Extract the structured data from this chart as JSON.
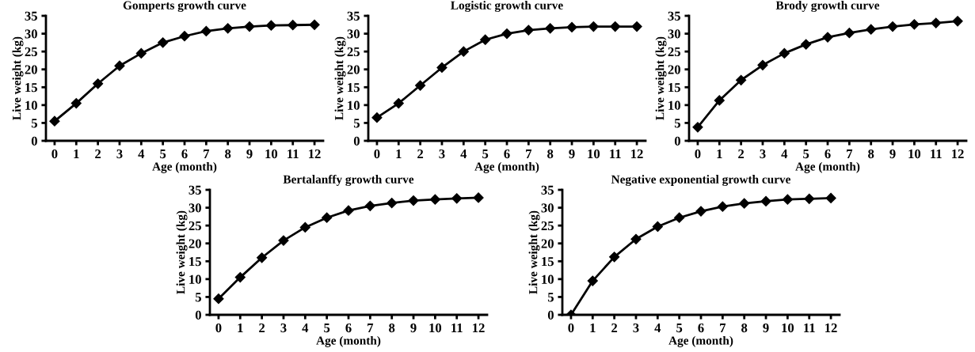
{
  "chart_data": [
    {
      "type": "line",
      "title": "Gomperts growth curve",
      "xlabel": "Age (month)",
      "ylabel": "Live weight (kg)",
      "x": [
        0,
        1,
        2,
        3,
        4,
        5,
        6,
        7,
        8,
        9,
        10,
        11,
        12
      ],
      "xlim": [
        -0.4,
        12.4
      ],
      "xticks": [
        0,
        1,
        2,
        3,
        4,
        5,
        6,
        7,
        8,
        9,
        10,
        11,
        12
      ],
      "ylim": [
        0,
        35
      ],
      "yticks": [
        0,
        5,
        10,
        15,
        20,
        25,
        30,
        35
      ],
      "marker": "diamond",
      "line_style": "solid",
      "grid": false,
      "legend": false,
      "series": [
        {
          "color": "#000000",
          "values": [
            5.5,
            10.5,
            16,
            21,
            24.5,
            27.5,
            29.3,
            30.7,
            31.5,
            32,
            32.3,
            32.4,
            32.5
          ]
        }
      ]
    },
    {
      "type": "line",
      "title": "Logistic growth curve",
      "xlabel": "Age (month)",
      "ylabel": "Live weight (kg)",
      "x": [
        0,
        1,
        2,
        3,
        4,
        5,
        6,
        7,
        8,
        9,
        10,
        11,
        12
      ],
      "xlim": [
        -0.4,
        12.4
      ],
      "xticks": [
        0,
        1,
        2,
        3,
        4,
        5,
        6,
        7,
        8,
        9,
        10,
        11,
        12
      ],
      "ylim": [
        0,
        35
      ],
      "yticks": [
        0,
        5,
        10,
        15,
        20,
        25,
        30,
        35
      ],
      "marker": "diamond",
      "line_style": "solid",
      "grid": false,
      "legend": false,
      "series": [
        {
          "color": "#000000",
          "values": [
            6.5,
            10.5,
            15.5,
            20.5,
            25,
            28.3,
            30,
            31,
            31.5,
            31.8,
            32,
            32,
            32
          ]
        }
      ]
    },
    {
      "type": "line",
      "title": "Brody growth curve",
      "xlabel": "Age (month)",
      "ylabel": "Live weight (kg)",
      "x": [
        0,
        1,
        2,
        3,
        4,
        5,
        6,
        7,
        8,
        9,
        10,
        11,
        12
      ],
      "xlim": [
        -0.4,
        12.4
      ],
      "xticks": [
        0,
        1,
        2,
        3,
        4,
        5,
        6,
        7,
        8,
        9,
        10,
        11,
        12
      ],
      "ylim": [
        0,
        35
      ],
      "yticks": [
        0,
        5,
        10,
        15,
        20,
        25,
        30,
        35
      ],
      "marker": "diamond",
      "line_style": "solid",
      "grid": false,
      "legend": false,
      "series": [
        {
          "color": "#000000",
          "values": [
            3.8,
            11.3,
            17,
            21.2,
            24.5,
            27,
            29,
            30.2,
            31.2,
            32,
            32.6,
            33,
            33.5
          ]
        }
      ]
    },
    {
      "type": "line",
      "title": "Bertalanffy growth curve",
      "xlabel": "Age (month)",
      "ylabel": "Live weight (kg)",
      "x": [
        0,
        1,
        2,
        3,
        4,
        5,
        6,
        7,
        8,
        9,
        10,
        11,
        12
      ],
      "xlim": [
        -0.4,
        12.4
      ],
      "xticks": [
        0,
        1,
        2,
        3,
        4,
        5,
        6,
        7,
        8,
        9,
        10,
        11,
        12
      ],
      "ylim": [
        0,
        35
      ],
      "yticks": [
        0,
        5,
        10,
        15,
        20,
        25,
        30,
        35
      ],
      "marker": "diamond",
      "line_style": "solid",
      "grid": false,
      "legend": false,
      "series": [
        {
          "color": "#000000",
          "values": [
            4.5,
            10.5,
            16,
            20.8,
            24.5,
            27.2,
            29.2,
            30.5,
            31.3,
            32,
            32.3,
            32.6,
            32.8
          ]
        }
      ]
    },
    {
      "type": "line",
      "title": "Negative exponential growth curve",
      "xlabel": "Age (month)",
      "ylabel": "Live weight (kg)",
      "x": [
        0,
        1,
        2,
        3,
        4,
        5,
        6,
        7,
        8,
        9,
        10,
        11,
        12
      ],
      "xlim": [
        -0.4,
        12.4
      ],
      "xticks": [
        0,
        1,
        2,
        3,
        4,
        5,
        6,
        7,
        8,
        9,
        10,
        11,
        12
      ],
      "ylim": [
        0,
        35
      ],
      "yticks": [
        0,
        5,
        10,
        15,
        20,
        25,
        30,
        35
      ],
      "marker": "diamond",
      "line_style": "solid",
      "grid": false,
      "legend": false,
      "series": [
        {
          "color": "#000000",
          "values": [
            0,
            9.5,
            16.2,
            21.2,
            24.7,
            27.2,
            29,
            30.3,
            31.2,
            31.8,
            32.3,
            32.5,
            32.7
          ]
        }
      ]
    }
  ]
}
